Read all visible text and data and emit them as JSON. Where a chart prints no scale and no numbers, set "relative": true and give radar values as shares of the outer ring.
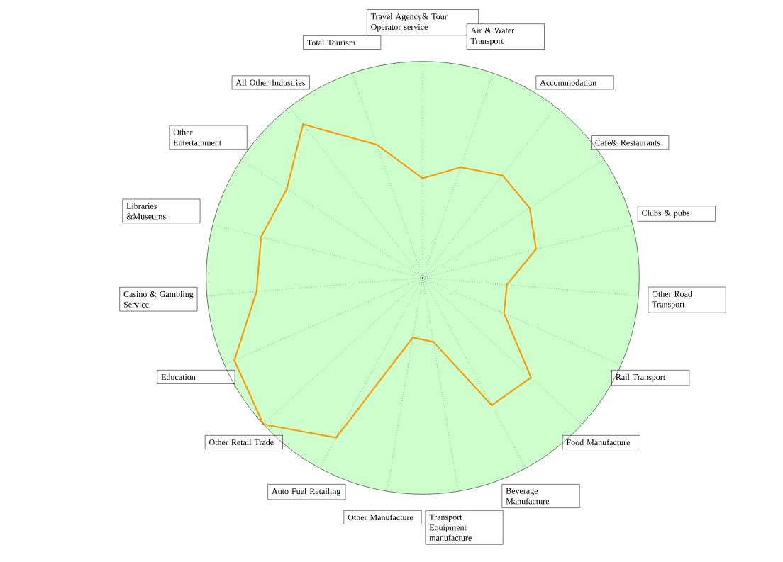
{
  "chart_data": {
    "type": "radar",
    "relative": true,
    "grid": "x",
    "marker": "none",
    "line_style": "solid",
    "categories": [
      "Travel Agency& Tour Operator service",
      "Air & Water Transport",
      "Accommodation",
      "Café& Restaurants",
      "Clubs & pubs",
      "Other Road Transport",
      "Rail Transport",
      "Food Manufacture",
      "Beverage Manufacture",
      "Transport Equipment manufacture",
      "Other Manufacture",
      "Auto Fuel Retailing",
      "Other Retail Trade",
      "Education",
      "Casino & Gambling Service",
      "Libraries &Museums",
      "Other Entertainment",
      "All Other Industries",
      "Total Tourism"
    ],
    "series": [
      {
        "color": "#ff9900",
        "values": [
          0.46,
          0.54,
          0.6,
          0.59,
          0.54,
          0.39,
          0.41,
          0.68,
          0.67,
          0.3,
          0.28,
          0.84,
          1.0,
          0.95,
          0.77,
          0.77,
          0.75,
          0.9,
          0.65
        ]
      }
    ]
  }
}
